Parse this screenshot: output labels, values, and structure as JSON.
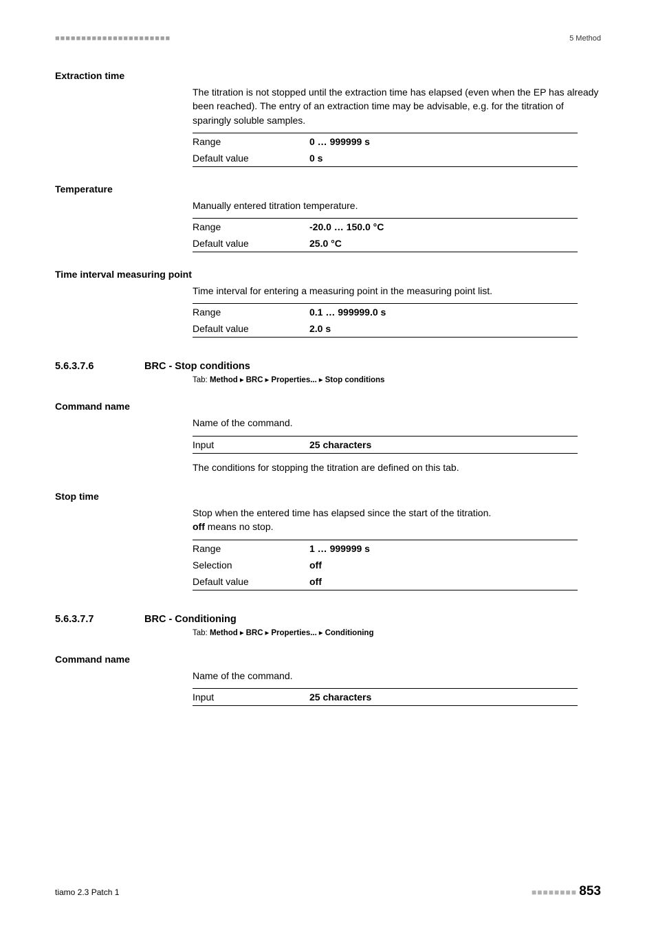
{
  "header": {
    "dots_left": "■■■■■■■■■■■■■■■■■■■■■■",
    "right": "5 Method"
  },
  "sections": {
    "extraction_time": {
      "label": "Extraction time",
      "desc": "The titration is not stopped until the extraction time has elapsed (even when the EP has already been reached). The entry of an extraction time may be advisable, e.g. for the titration of sparingly soluble samples.",
      "range_label": "Range",
      "range_value": "0 … 999999 s",
      "default_label": "Default value",
      "default_value": "0 s"
    },
    "temperature": {
      "label": "Temperature",
      "desc": "Manually entered titration temperature.",
      "range_label": "Range",
      "range_value": "-20.0 … 150.0 °C",
      "default_label": "Default value",
      "default_value": "25.0 °C"
    },
    "tim_point": {
      "label": "Time interval measuring point",
      "desc": "Time interval for entering a measuring point in the measuring point list.",
      "range_label": "Range",
      "range_value": "0.1 … 999999.0 s",
      "default_label": "Default value",
      "default_value": "2.0 s"
    }
  },
  "sub1": {
    "num": "5.6.3.7.6",
    "title": "BRC - Stop conditions",
    "tab_prefix": "Tab:",
    "tab_parts": [
      "Method",
      "BRC",
      "Properties...",
      "Stop conditions"
    ],
    "command_name": {
      "label": "Command name",
      "desc": "Name of the command.",
      "input_label": "Input",
      "input_value": "25 characters",
      "note": "The conditions for stopping the titration are defined on this tab."
    },
    "stop_time": {
      "label": "Stop time",
      "desc_a": "Stop when the entered time has elapsed since the start of the titration.",
      "desc_b_bold": "off",
      "desc_b_rest": " means no stop.",
      "range_label": "Range",
      "range_value": "1 … 999999 s",
      "selection_label": "Selection",
      "selection_value": "off",
      "default_label": "Default value",
      "default_value": "off"
    }
  },
  "sub2": {
    "num": "5.6.3.7.7",
    "title": "BRC - Conditioning",
    "tab_prefix": "Tab:",
    "tab_parts": [
      "Method",
      "BRC",
      "Properties...",
      "Conditioning"
    ],
    "command_name": {
      "label": "Command name",
      "desc": "Name of the command.",
      "input_label": "Input",
      "input_value": "25 characters"
    }
  },
  "footer": {
    "left": "tiamo 2.3 Patch 1",
    "dots": "■■■■■■■■",
    "page": "853"
  }
}
